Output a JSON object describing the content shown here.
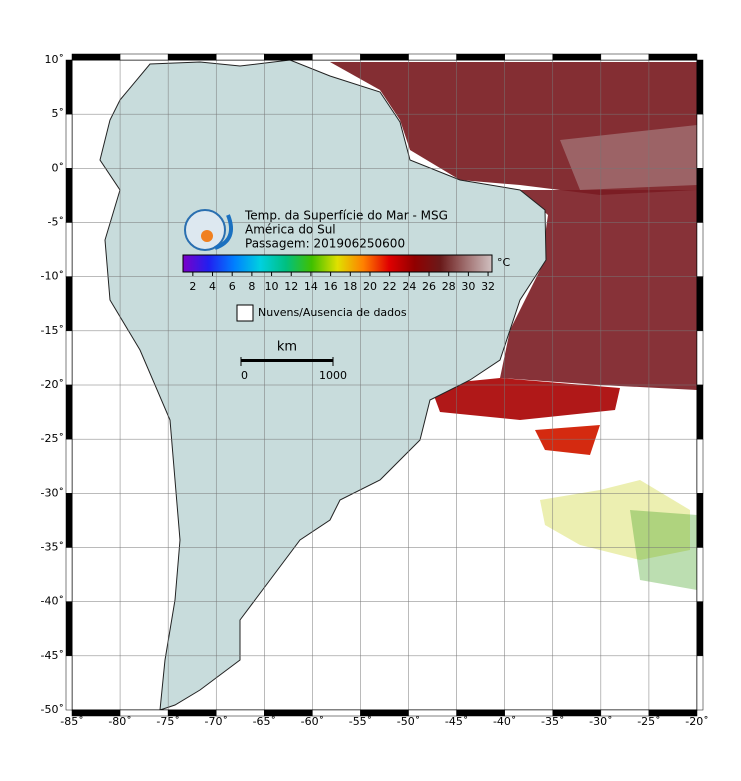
{
  "map": {
    "lonlim": [
      -85,
      -20
    ],
    "latlim": [
      -50,
      10
    ],
    "lonticks": [
      {
        "value": -85,
        "label": "-85˚"
      },
      {
        "value": -80,
        "label": "-80˚"
      },
      {
        "value": -75,
        "label": "-75˚"
      },
      {
        "value": -70,
        "label": "-70˚"
      },
      {
        "value": -65,
        "label": "-65˚"
      },
      {
        "value": -60,
        "label": "-60˚"
      },
      {
        "value": -55,
        "label": "-55˚"
      },
      {
        "value": -50,
        "label": "-50˚"
      },
      {
        "value": -45,
        "label": "-45˚"
      },
      {
        "value": -40,
        "label": "-40˚"
      },
      {
        "value": -35,
        "label": "-35˚"
      },
      {
        "value": -30,
        "label": "-30˚"
      },
      {
        "value": -25,
        "label": "-25˚"
      },
      {
        "value": -20,
        "label": "-20˚"
      }
    ],
    "latticks": [
      {
        "value": 10,
        "label": "10˚"
      },
      {
        "value": 5,
        "label": "5˚"
      },
      {
        "value": 0,
        "label": "0˚"
      },
      {
        "value": -5,
        "label": "-5˚"
      },
      {
        "value": -10,
        "label": "-10˚"
      },
      {
        "value": -15,
        "label": "-15˚"
      },
      {
        "value": -20,
        "label": "-20˚"
      },
      {
        "value": -25,
        "label": "-25˚"
      },
      {
        "value": -30,
        "label": "-30˚"
      },
      {
        "value": -35,
        "label": "-35˚"
      },
      {
        "value": -40,
        "label": "-40˚"
      },
      {
        "value": -45,
        "label": "-45˚"
      },
      {
        "value": -50,
        "label": "-50˚"
      }
    ],
    "grid": true,
    "title": [
      "Temp. da Superfície do Mar - MSG",
      "América do Sul",
      "Passagem: 201906250600"
    ],
    "colorbar": {
      "lim": [
        1,
        32.4
      ],
      "ticks": [
        2,
        4,
        6,
        8,
        10,
        12,
        14,
        16,
        18,
        20,
        22,
        24,
        26,
        28,
        30,
        32
      ],
      "unit": "°C",
      "colors": [
        "#7a00c8",
        "#2020f0",
        "#0080ff",
        "#00d0e0",
        "#00c080",
        "#40c000",
        "#e0e000",
        "#ff8000",
        "#e00000",
        "#900000",
        "#6a1a1a",
        "#a07070",
        "#d0c0c0"
      ]
    },
    "legend": "Nuvens/Ausencia de dados",
    "scale_bar": {
      "unit": "km",
      "ticks": [
        0,
        1000
      ]
    }
  }
}
